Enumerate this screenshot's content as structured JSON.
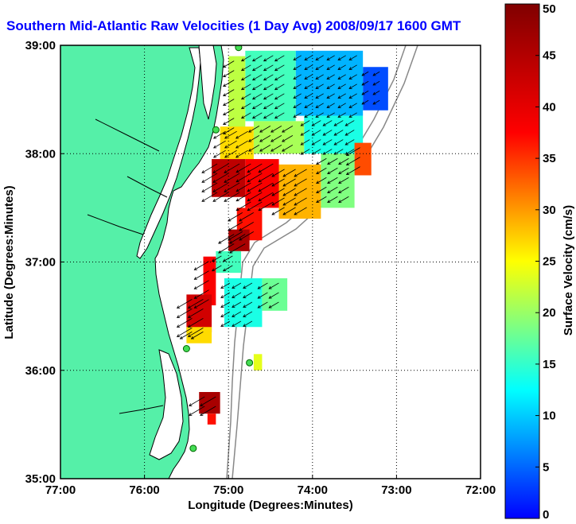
{
  "chart_data": {
    "type": "heatmap",
    "title": "Southern Mid-Atlantic Raw Velocities (1 Day Avg) 2008/09/17 1600 GMT",
    "xlabel": "Longitude (Degrees:Minutes)",
    "ylabel": "Latitude (Degrees:Minutes)",
    "xlim": [
      -77,
      -72
    ],
    "ylim": [
      35,
      39
    ],
    "x_ticks": [
      {
        "value": -77,
        "label": "77:00"
      },
      {
        "value": -76,
        "label": "76:00"
      },
      {
        "value": -75,
        "label": "75:00"
      },
      {
        "value": -74,
        "label": "74:00"
      },
      {
        "value": -73,
        "label": "73:00"
      },
      {
        "value": -72,
        "label": "72:00"
      }
    ],
    "y_ticks": [
      {
        "value": 35,
        "label": "35:00"
      },
      {
        "value": 36,
        "label": "36:00"
      },
      {
        "value": 37,
        "label": "37:00"
      },
      {
        "value": 38,
        "label": "38:00"
      },
      {
        "value": 39,
        "label": "39:00"
      }
    ],
    "grid": "dotted",
    "colorbar": {
      "label": "Surface Velocity (cm/s)",
      "range": [
        0,
        50
      ],
      "ticks": [
        {
          "value": 0,
          "label": "0"
        },
        {
          "value": 5,
          "label": "5"
        },
        {
          "value": 10,
          "label": "10"
        },
        {
          "value": 15,
          "label": "15"
        },
        {
          "value": 20,
          "label": "20"
        },
        {
          "value": 25,
          "label": "25"
        },
        {
          "value": 30,
          "label": "30"
        },
        {
          "value": 35,
          "label": "35"
        },
        {
          "value": 40,
          "label": "40"
        },
        {
          "value": 45,
          "label": "45"
        },
        {
          "value": 50,
          "label": "50"
        }
      ],
      "colormap": "jet"
    },
    "land_color": "#55f0a8",
    "stations": [
      {
        "lon": -74.88,
        "lat": 38.98
      },
      {
        "lon": -75.15,
        "lat": 38.22
      },
      {
        "lon": -75.5,
        "lat": 36.2
      },
      {
        "lon": -74.75,
        "lat": 36.07
      },
      {
        "lon": -75.42,
        "lat": 35.28
      }
    ],
    "velocity_regions": [
      {
        "lon": [
          -73.4,
          -73.1
        ],
        "lat": [
          38.4,
          38.8
        ],
        "speed": 10
      },
      {
        "lon": [
          -74.2,
          -73.4
        ],
        "lat": [
          38.35,
          38.95
        ],
        "speed": 15
      },
      {
        "lon": [
          -74.8,
          -74.2
        ],
        "lat": [
          38.3,
          38.95
        ],
        "speed": 22
      },
      {
        "lon": [
          -75.0,
          -74.8
        ],
        "lat": [
          38.2,
          38.9
        ],
        "speed": 28
      },
      {
        "lon": [
          -74.1,
          -73.4
        ],
        "lat": [
          38.0,
          38.35
        ],
        "speed": 20
      },
      {
        "lon": [
          -74.7,
          -74.1
        ],
        "lat": [
          38.0,
          38.3
        ],
        "speed": 27
      },
      {
        "lon": [
          -75.1,
          -74.7
        ],
        "lat": [
          37.95,
          38.25
        ],
        "speed": 33
      },
      {
        "lon": [
          -73.5,
          -73.3
        ],
        "lat": [
          37.8,
          38.1
        ],
        "speed": 40
      },
      {
        "lon": [
          -73.9,
          -73.5
        ],
        "lat": [
          37.5,
          38.0
        ],
        "speed": 25
      },
      {
        "lon": [
          -74.4,
          -73.9
        ],
        "lat": [
          37.4,
          37.9
        ],
        "speed": 35
      },
      {
        "lon": [
          -74.8,
          -74.4
        ],
        "lat": [
          37.5,
          37.95
        ],
        "speed": 44
      },
      {
        "lon": [
          -75.2,
          -74.8
        ],
        "lat": [
          37.6,
          37.95
        ],
        "speed": 47
      },
      {
        "lon": [
          -74.9,
          -74.6
        ],
        "lat": [
          37.2,
          37.5
        ],
        "speed": 43
      },
      {
        "lon": [
          -75.0,
          -74.75
        ],
        "lat": [
          37.1,
          37.3
        ],
        "speed": 48
      },
      {
        "lon": [
          -75.15,
          -74.85
        ],
        "lat": [
          36.9,
          37.1
        ],
        "speed": 22
      },
      {
        "lon": [
          -75.3,
          -75.15
        ],
        "lat": [
          36.6,
          37.05
        ],
        "speed": 44
      },
      {
        "lon": [
          -75.5,
          -75.2
        ],
        "lat": [
          36.35,
          36.7
        ],
        "speed": 46
      },
      {
        "lon": [
          -75.5,
          -75.2
        ],
        "lat": [
          36.25,
          36.4
        ],
        "speed": 33
      },
      {
        "lon": [
          -75.05,
          -74.6
        ],
        "lat": [
          36.4,
          36.85
        ],
        "speed": 20
      },
      {
        "lon": [
          -74.6,
          -74.3
        ],
        "lat": [
          36.55,
          36.85
        ],
        "speed": 24
      },
      {
        "lon": [
          -74.7,
          -74.6
        ],
        "lat": [
          36.0,
          36.15
        ],
        "speed": 30
      },
      {
        "lon": [
          -75.35,
          -75.1
        ],
        "lat": [
          35.6,
          35.8
        ],
        "speed": 48
      },
      {
        "lon": [
          -75.25,
          -75.15
        ],
        "lat": [
          35.5,
          35.6
        ],
        "speed": 43
      }
    ]
  }
}
